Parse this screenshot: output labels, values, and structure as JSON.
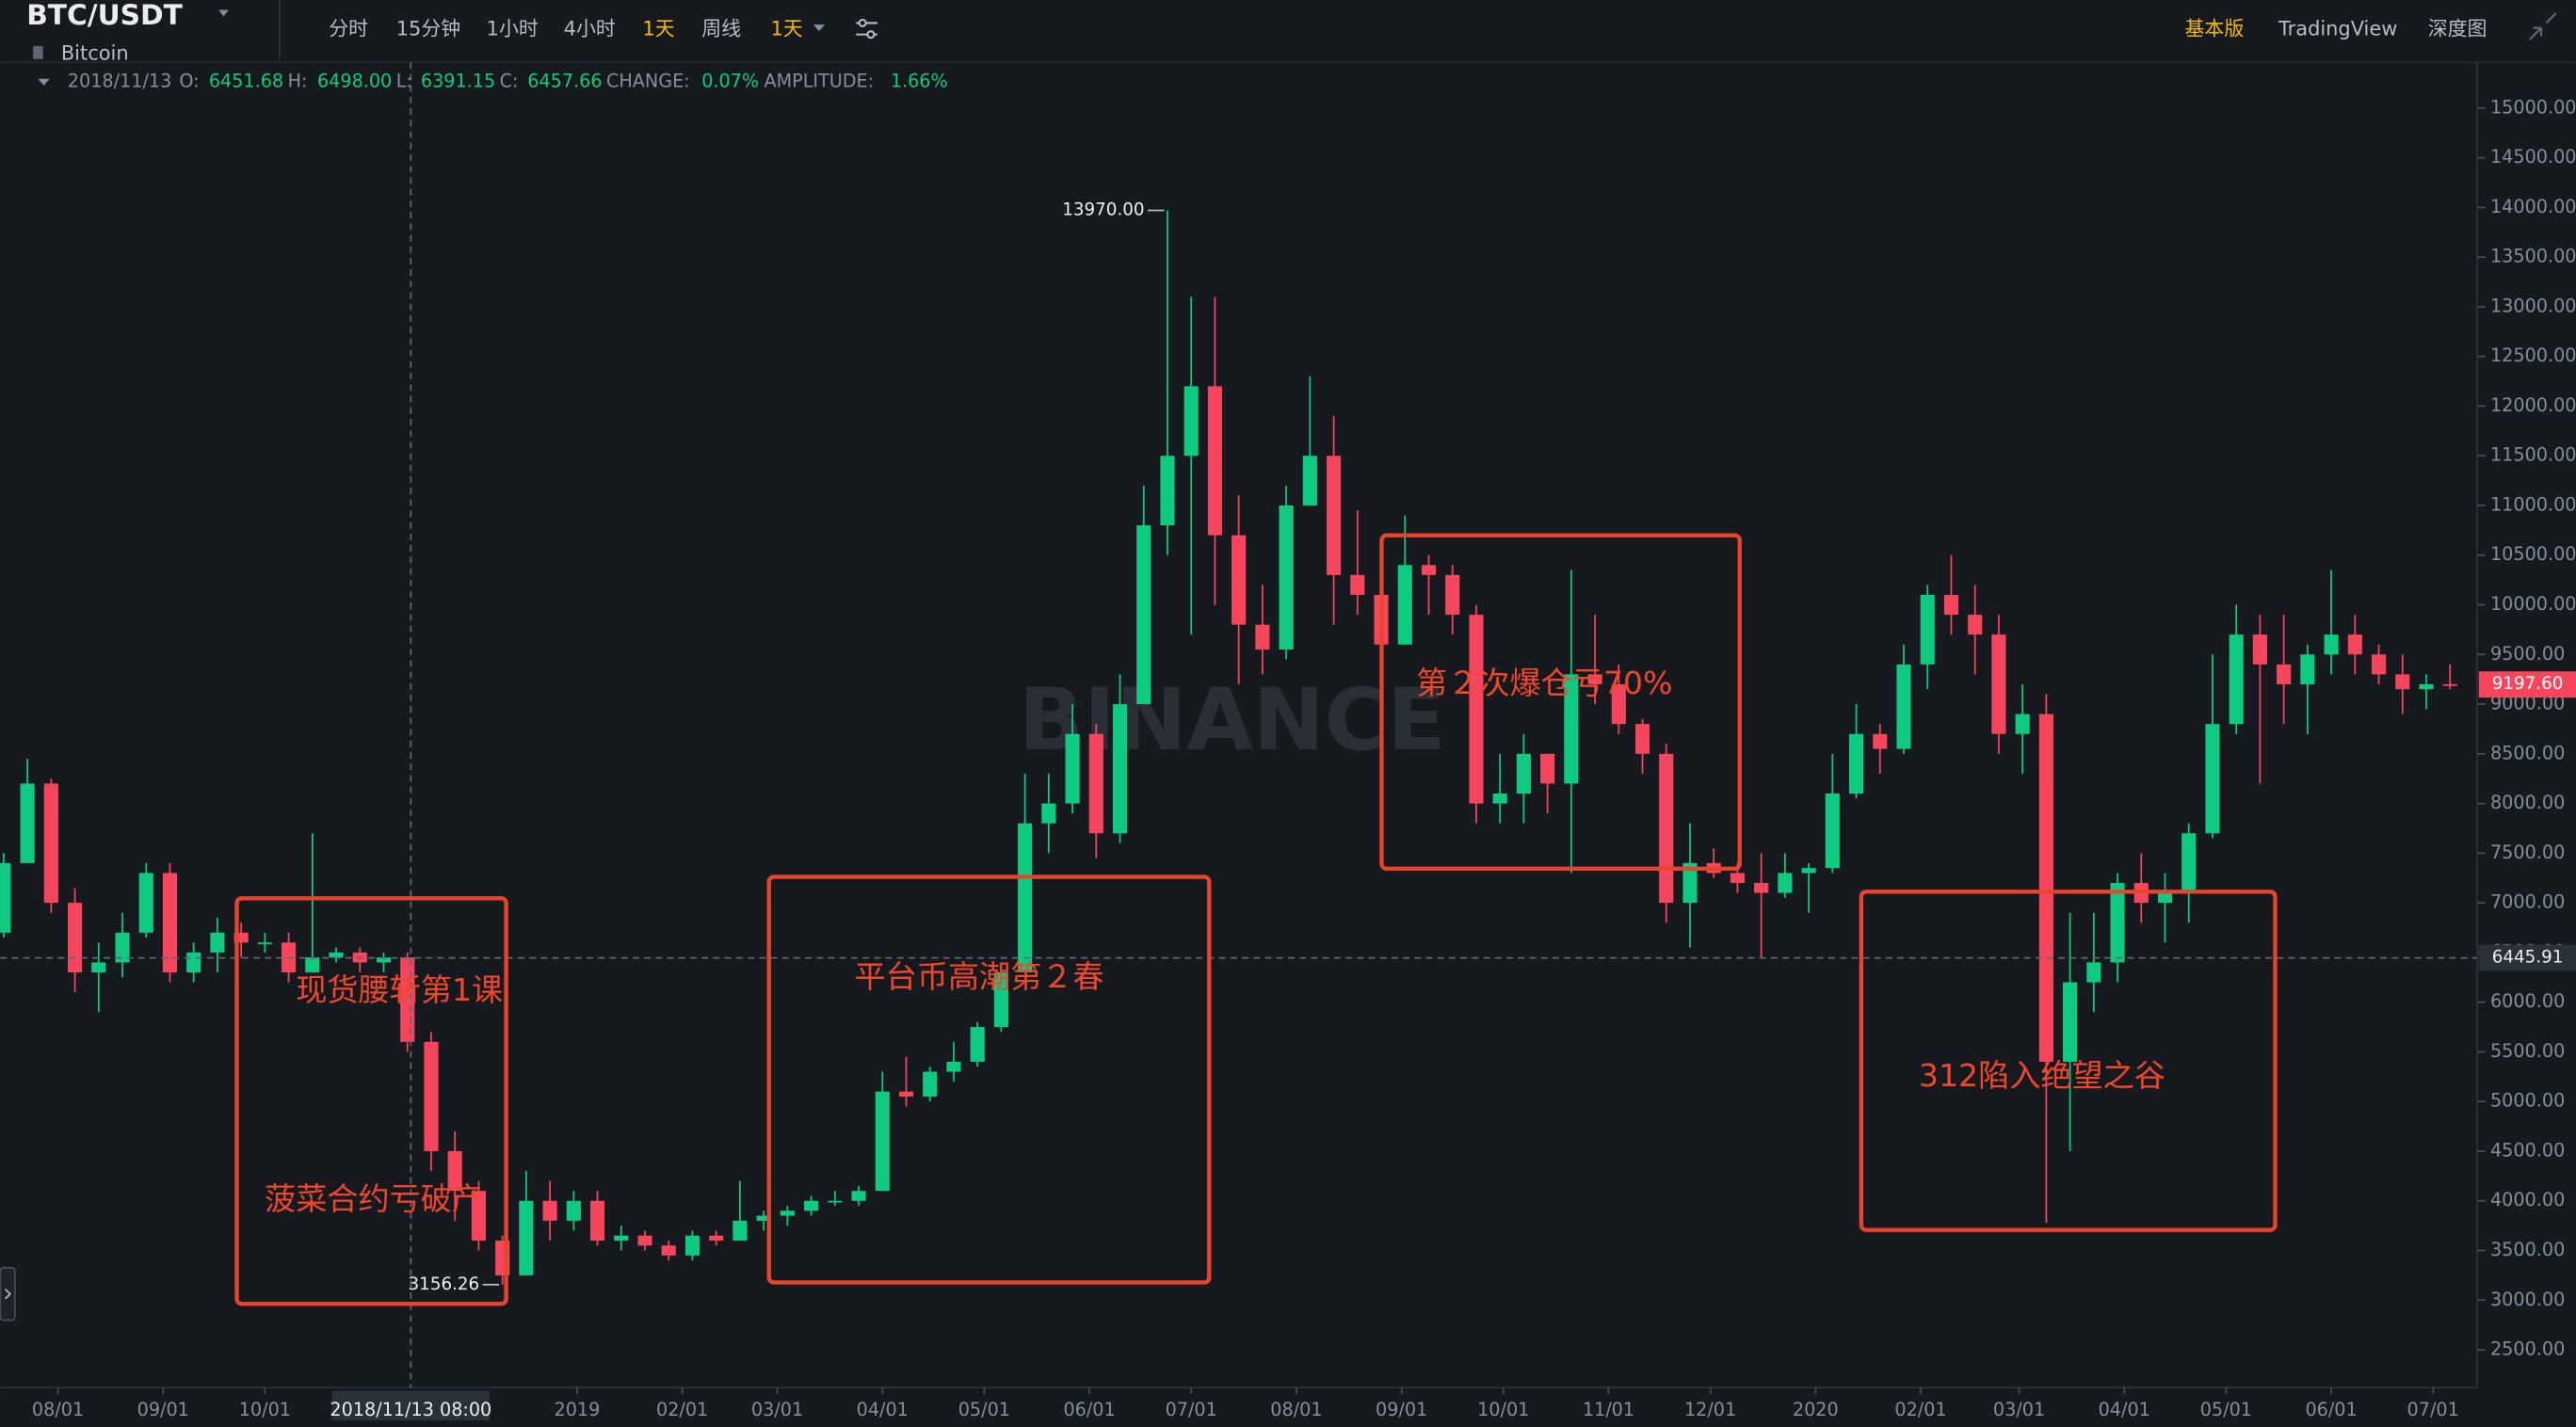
{
  "header": {
    "symbol": "BTC/USDT",
    "name": "Bitcoin",
    "intervals": [
      "分时",
      "15分钟",
      "1小时",
      "4小时",
      "1天",
      "周线",
      "1天"
    ],
    "views": [
      "基本版",
      "TradingView",
      "深度图"
    ]
  },
  "ohlc_info": {
    "date": "2018/11/13",
    "o_label": "O:",
    "open": "6451.68",
    "h_label": "H:",
    "high": "6498.00",
    "l_label": "L:",
    "low": "6391.15",
    "c_label": "C:",
    "close": "6457.66",
    "change_label": "CHANGE:",
    "change": "0.07%",
    "amplitude_label": "AMPLITUDE:",
    "amplitude": "1.66%"
  },
  "crosshair": {
    "label": "2018/11/13 08:00",
    "price": {
      "value": 6445.91,
      "label": "6445.91"
    }
  },
  "watermark": "BINANCE",
  "annotations": [
    "现货腰斩第1课",
    "菠菜合约亏破产",
    "平台币高潮第２春",
    "第２次爆仓亏70%",
    "312陷入绝望之谷"
  ],
  "chart_data": {
    "type": "candlestick",
    "up_color": "#0ecb81",
    "down_color": "#f6465d",
    "x": [
      "2018/07/16",
      "2018/07/23",
      "2018/07/30",
      "2018/08/06",
      "2018/08/13",
      "2018/08/20",
      "2018/08/27",
      "2018/09/03",
      "2018/09/10",
      "2018/09/17",
      "2018/09/24",
      "2018/10/01",
      "2018/10/08",
      "2018/10/15",
      "2018/10/22",
      "2018/10/29",
      "2018/11/05",
      "2018/11/12",
      "2018/11/19",
      "2018/11/26",
      "2018/12/03",
      "2018/12/10",
      "2018/12/17",
      "2018/12/24",
      "2018/12/31",
      "2019/01/07",
      "2019/01/14",
      "2019/01/21",
      "2019/01/28",
      "2019/02/04",
      "2019/02/11",
      "2019/02/18",
      "2019/02/25",
      "2019/03/04",
      "2019/03/11",
      "2019/03/18",
      "2019/03/25",
      "2019/04/01",
      "2019/04/08",
      "2019/04/15",
      "2019/04/22",
      "2019/04/29",
      "2019/05/06",
      "2019/05/13",
      "2019/05/20",
      "2019/05/27",
      "2019/06/03",
      "2019/06/10",
      "2019/06/17",
      "2019/06/24",
      "2019/07/01",
      "2019/07/08",
      "2019/07/15",
      "2019/07/22",
      "2019/07/29",
      "2019/08/05",
      "2019/08/12",
      "2019/08/19",
      "2019/08/26",
      "2019/09/02",
      "2019/09/09",
      "2019/09/16",
      "2019/09/23",
      "2019/09/30",
      "2019/10/07",
      "2019/10/14",
      "2019/10/21",
      "2019/10/28",
      "2019/11/04",
      "2019/11/11",
      "2019/11/18",
      "2019/11/25",
      "2019/12/02",
      "2019/12/09",
      "2019/12/16",
      "2019/12/23",
      "2019/12/30",
      "2020/01/06",
      "2020/01/13",
      "2020/01/20",
      "2020/01/27",
      "2020/02/03",
      "2020/02/10",
      "2020/02/17",
      "2020/02/24",
      "2020/03/02",
      "2020/03/09",
      "2020/03/16",
      "2020/03/23",
      "2020/03/30",
      "2020/04/06",
      "2020/04/13",
      "2020/04/20",
      "2020/04/27",
      "2020/05/04",
      "2020/05/11",
      "2020/05/18",
      "2020/05/25",
      "2020/06/01",
      "2020/06/08",
      "2020/06/15",
      "2020/06/22",
      "2020/06/29",
      "2020/07/06"
    ],
    "open": [
      6700,
      7400,
      8200,
      7000,
      6300,
      6400,
      6700,
      7300,
      6300,
      6500,
      6700,
      6600,
      6600,
      6300,
      6450,
      6500,
      6400,
      6450,
      5600,
      4500,
      4100,
      3600,
      3250,
      4000,
      3800,
      4000,
      3600,
      3650,
      3550,
      3450,
      3650,
      3600,
      3800,
      3850,
      3900,
      4000,
      4000,
      4100,
      5100,
      5050,
      5300,
      5400,
      5750,
      6300,
      7800,
      8000,
      8700,
      7700,
      9000,
      10800,
      11500,
      12200,
      10700,
      9800,
      9550,
      11000,
      11500,
      10300,
      10100,
      9600,
      10400,
      10300,
      9900,
      8000,
      8100,
      8500,
      8200,
      9300,
      9200,
      8800,
      8500,
      7000,
      7400,
      7300,
      7200,
      7100,
      7300,
      7350,
      8100,
      8700,
      8550,
      9400,
      10100,
      9900,
      9700,
      8700,
      8900,
      5400,
      6200,
      6400,
      7200,
      7000,
      7100,
      7700,
      8800,
      9700,
      9400,
      9200,
      9500,
      9700,
      9500,
      9300,
      9150,
      9200
    ],
    "high": [
      7500,
      8450,
      8250,
      7150,
      6600,
      6900,
      7400,
      7400,
      6600,
      6850,
      6800,
      6700,
      6700,
      7700,
      6550,
      6550,
      6500,
      6500,
      5700,
      4700,
      4200,
      3650,
      4300,
      4200,
      4100,
      4100,
      3750,
      3700,
      3600,
      3700,
      3700,
      4200,
      3900,
      3950,
      4050,
      4100,
      4150,
      5300,
      5450,
      5350,
      5600,
      5800,
      6400,
      8300,
      8300,
      9000,
      8800,
      9300,
      11200,
      13970,
      13100,
      13100,
      11100,
      10200,
      11200,
      12300,
      11900,
      10950,
      10600,
      10900,
      10500,
      10400,
      10000,
      8500,
      8700,
      8500,
      10350,
      9900,
      9400,
      8850,
      8600,
      7800,
      7550,
      7400,
      7500,
      7500,
      7400,
      8500,
      9000,
      8800,
      9600,
      10200,
      10500,
      10200,
      9900,
      9200,
      9100,
      6900,
      6900,
      7300,
      7500,
      7300,
      7800,
      9500,
      10000,
      9900,
      9900,
      9600,
      10350,
      9900,
      9600,
      9500,
      9300,
      9400
    ],
    "low": [
      6650,
      7400,
      6900,
      6100,
      5900,
      6250,
      6650,
      6200,
      6200,
      6300,
      6450,
      6500,
      6200,
      6300,
      6400,
      6300,
      6300,
      5500,
      4300,
      3800,
      3500,
      3156.26,
      3250,
      3600,
      3700,
      3550,
      3500,
      3500,
      3400,
      3400,
      3550,
      3600,
      3700,
      3750,
      3850,
      3950,
      3950,
      4100,
      4950,
      5000,
      5200,
      5350,
      5700,
      6300,
      7500,
      7900,
      7450,
      7600,
      9000,
      10500,
      9700,
      10000,
      9200,
      9300,
      9450,
      11000,
      9800,
      9900,
      9400,
      9600,
      9900,
      9700,
      7800,
      7800,
      7800,
      7900,
      7300,
      9000,
      8700,
      8300,
      6800,
      6550,
      7250,
      7100,
      6450,
      7050,
      6900,
      7300,
      8050,
      8300,
      8500,
      9150,
      9700,
      9300,
      8500,
      8300,
      3780,
      4500,
      5900,
      6200,
      6800,
      6600,
      6800,
      7650,
      8700,
      8200,
      8800,
      8700,
      9300,
      9300,
      9200,
      8900,
      8950,
      9150
    ],
    "close": [
      7400,
      8200,
      7000,
      6300,
      6400,
      6700,
      7300,
      6300,
      6500,
      6700,
      6600,
      6600,
      6300,
      6450,
      6500,
      6400,
      6450,
      5600,
      4500,
      4100,
      3600,
      3250,
      4000,
      3800,
      4000,
      3600,
      3650,
      3550,
      3450,
      3650,
      3600,
      3800,
      3850,
      3900,
      4000,
      4000,
      4100,
      5100,
      5050,
      5300,
      5400,
      5750,
      6300,
      7800,
      8000,
      8700,
      7700,
      9000,
      10800,
      11500,
      12200,
      10700,
      9800,
      9550,
      11000,
      11500,
      10300,
      10100,
      9600,
      10400,
      10300,
      9900,
      8000,
      8100,
      8500,
      8200,
      9300,
      9200,
      8800,
      8500,
      7000,
      7400,
      7300,
      7200,
      7100,
      7300,
      7350,
      8100,
      8700,
      8550,
      9400,
      10100,
      9900,
      9700,
      8700,
      8900,
      5400,
      6200,
      6400,
      7200,
      7000,
      7100,
      7700,
      8800,
      9700,
      9400,
      9200,
      9500,
      9700,
      9500,
      9300,
      9150,
      9200,
      9197.6
    ],
    "max_label": "13970.00",
    "min_label": "3156.26",
    "last_price_label": "9197.60",
    "xlim": [
      "2018/07/15",
      "2020/07/14"
    ],
    "xticks": [
      {
        "value": "2018/08/01",
        "label": "08/01"
      },
      {
        "value": "2018/09/01",
        "label": "09/01"
      },
      {
        "value": "2018/10/01",
        "label": "10/01"
      },
      {
        "value": "2019/01/01",
        "label": "2019"
      },
      {
        "value": "2019/02/01",
        "label": "02/01"
      },
      {
        "value": "2019/03/01",
        "label": "03/01"
      },
      {
        "value": "2019/04/01",
        "label": "04/01"
      },
      {
        "value": "2019/05/01",
        "label": "05/01"
      },
      {
        "value": "2019/06/01",
        "label": "06/01"
      },
      {
        "value": "2019/07/01",
        "label": "07/01"
      },
      {
        "value": "2019/08/01",
        "label": "08/01"
      },
      {
        "value": "2019/09/01",
        "label": "09/01"
      },
      {
        "value": "2019/10/01",
        "label": "10/01"
      },
      {
        "value": "2019/11/01",
        "label": "11/01"
      },
      {
        "value": "2019/12/01",
        "label": "12/01"
      },
      {
        "value": "2020/01/01",
        "label": "2020"
      },
      {
        "value": "2020/02/01",
        "label": "02/01"
      },
      {
        "value": "2020/03/01",
        "label": "03/01"
      },
      {
        "value": "2020/04/01",
        "label": "04/01"
      },
      {
        "value": "2020/05/01",
        "label": "05/01"
      },
      {
        "value": "2020/06/01",
        "label": "06/01"
      },
      {
        "value": "2020/07/01",
        "label": "07/01"
      }
    ],
    "ylim": [
      2120,
      15460
    ],
    "yticks": [
      {
        "value": 2500,
        "label": "2500.00"
      },
      {
        "value": 3000,
        "label": "3000.00"
      },
      {
        "value": 3500,
        "label": "3500.00"
      },
      {
        "value": 4000,
        "label": "4000.00"
      },
      {
        "value": 4500,
        "label": "4500.00"
      },
      {
        "value": 5000,
        "label": "5000.00"
      },
      {
        "value": 5500,
        "label": "5500.00"
      },
      {
        "value": 6000,
        "label": "6000.00"
      },
      {
        "value": 6500,
        "label": "6500.00"
      },
      {
        "value": 7000,
        "label": "7000.00"
      },
      {
        "value": 7500,
        "label": "7500.00"
      },
      {
        "value": 8000,
        "label": "8000.00"
      },
      {
        "value": 8500,
        "label": "8500.00"
      },
      {
        "value": 9000,
        "label": "9000.00"
      },
      {
        "value": 9500,
        "label": "9500.00"
      },
      {
        "value": 10000,
        "label": "10000.00"
      },
      {
        "value": 10500,
        "label": "10500.00"
      },
      {
        "value": 11000,
        "label": "11000.00"
      },
      {
        "value": 11500,
        "label": "11500.00"
      },
      {
        "value": 12000,
        "label": "12000.00"
      },
      {
        "value": 12500,
        "label": "12500.00"
      },
      {
        "value": 13000,
        "label": "13000.00"
      },
      {
        "value": 13500,
        "label": "13500.00"
      },
      {
        "value": 14000,
        "label": "14000.00"
      },
      {
        "value": 14500,
        "label": "14500.00"
      },
      {
        "value": 15000,
        "label": "15000.00"
      }
    ]
  }
}
